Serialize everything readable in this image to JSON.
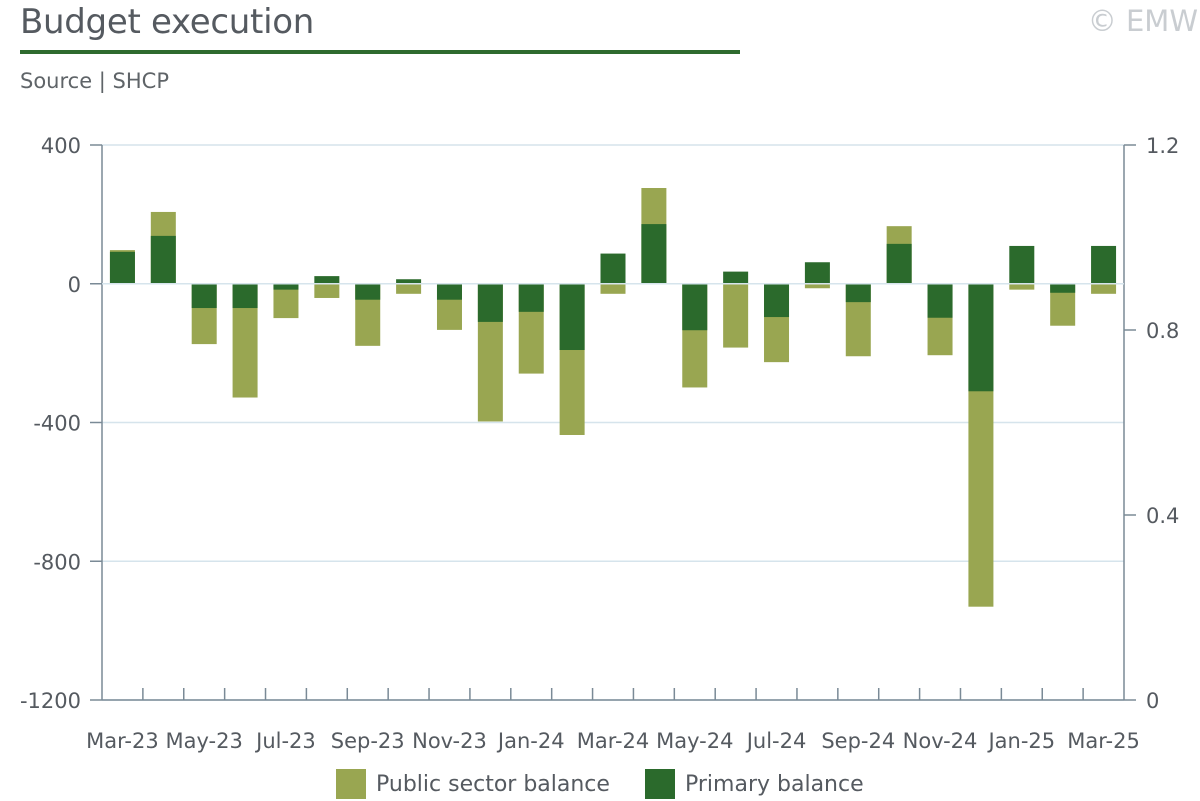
{
  "header": {
    "title": "Budget execution",
    "source": "Source | SHCP",
    "copyright": "© EMW"
  },
  "colors": {
    "public_sector": "#99a651",
    "primary": "#2b6a2c",
    "accent_rule": "#2e6b2e",
    "grid": "#d6e4ec",
    "axis": "#7a8a96"
  },
  "chart_data": {
    "type": "bar",
    "stacked": true,
    "categories": [
      "Mar-23",
      "Apr-23",
      "May-23",
      "Jun-23",
      "Jul-23",
      "Aug-23",
      "Sep-23",
      "Oct-23",
      "Nov-23",
      "Dec-23",
      "Jan-24",
      "Feb-24",
      "Mar-24",
      "Apr-24",
      "May-24",
      "Jun-24",
      "Jul-24",
      "Aug-24",
      "Sep-24",
      "Oct-24",
      "Nov-24",
      "Dec-24",
      "Jan-25",
      "Feb-25",
      "Mar-25"
    ],
    "tick_labels": [
      "Mar-23",
      "May-23",
      "Jul-23",
      "Sep-23",
      "Nov-23",
      "Jan-24",
      "Mar-24",
      "May-24",
      "Jul-24",
      "Sep-24",
      "Nov-24",
      "Jan-25",
      "Mar-25"
    ],
    "series": [
      {
        "name": "Public sector balance",
        "color": "#99a651",
        "values": [
          97,
          207,
          -174,
          -328,
          -99,
          -41,
          -179,
          -29,
          -133,
          -397,
          -259,
          -436,
          -29,
          276,
          -299,
          -184,
          -226,
          -13,
          -209,
          166,
          -206,
          -931,
          -17,
          -121,
          -29
        ]
      },
      {
        "name": "Primary balance",
        "color": "#2b6a2c",
        "values": [
          92,
          138,
          -70,
          -70,
          -17,
          22,
          -46,
          13,
          -46,
          -110,
          -81,
          -191,
          87,
          172,
          -134,
          35,
          -96,
          62,
          -53,
          115,
          -98,
          -310,
          109,
          -26,
          109
        ]
      }
    ],
    "y_left": {
      "ticks": [
        "400",
        "0",
        "-400",
        "-800",
        "-1200"
      ],
      "min": -1200,
      "max": 400
    },
    "y_right": {
      "ticks": [
        "1.2",
        "0.8",
        "0.4",
        "0"
      ],
      "min": 0,
      "max": 1.2
    },
    "legend_position": "bottom",
    "grid": true
  }
}
